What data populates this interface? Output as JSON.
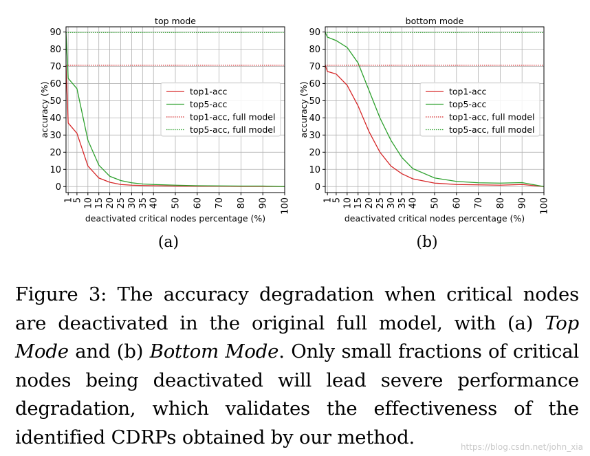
{
  "chart_data": [
    {
      "type": "line",
      "title": "top mode",
      "xlabel": "deactivated critical nodes percentage (%)",
      "ylabel": "accuracy (%)",
      "xlim": [
        0,
        100
      ],
      "ylim": [
        -3.5,
        93
      ],
      "grid": true,
      "legend": "center-right",
      "xticks": [
        1,
        5,
        10,
        15,
        20,
        25,
        30,
        35,
        40,
        50,
        60,
        70,
        80,
        90,
        100
      ],
      "yticks": [
        0,
        10,
        20,
        30,
        40,
        50,
        60,
        70,
        80,
        90
      ],
      "x": [
        0,
        1,
        5,
        10,
        15,
        20,
        25,
        30,
        35,
        40,
        50,
        60,
        70,
        80,
        90,
        100
      ],
      "series": [
        {
          "name": "top1-acc",
          "style": "solid",
          "color": "#d62728",
          "values": [
            70.6,
            37,
            31,
            12,
            5,
            2.5,
            1.2,
            0.8,
            0.6,
            0.5,
            0.3,
            0.2,
            0.2,
            0.1,
            0.1,
            0
          ]
        },
        {
          "name": "top5-acc",
          "style": "solid",
          "color": "#2ca02c",
          "values": [
            89.7,
            63,
            57,
            27,
            12.5,
            6,
            3.5,
            2.2,
            1.5,
            1.2,
            0.8,
            0.5,
            0.4,
            0.3,
            0.3,
            0
          ]
        },
        {
          "name": "top1-acc, full model",
          "style": "dotted",
          "color": "#d62728",
          "constant": 70.6
        },
        {
          "name": "top5-acc, full model",
          "style": "dotted",
          "color": "#2ca02c",
          "constant": 89.7
        }
      ]
    },
    {
      "type": "line",
      "title": "bottom mode",
      "xlabel": "deactivated critical nodes percentage (%)",
      "ylabel": "accuracy (%)",
      "xlim": [
        0,
        100
      ],
      "ylim": [
        -3.5,
        93
      ],
      "grid": true,
      "legend": "center-right",
      "xticks": [
        1,
        5,
        10,
        15,
        20,
        25,
        30,
        35,
        40,
        50,
        60,
        70,
        80,
        90,
        100
      ],
      "yticks": [
        0,
        10,
        20,
        30,
        40,
        50,
        60,
        70,
        80,
        90
      ],
      "x": [
        0,
        1,
        5,
        10,
        15,
        20,
        25,
        30,
        35,
        40,
        50,
        60,
        70,
        80,
        90,
        100
      ],
      "series": [
        {
          "name": "top1-acc",
          "style": "solid",
          "color": "#d62728",
          "values": [
            70.6,
            67,
            65.5,
            59,
            47,
            32,
            20,
            12,
            7.5,
            4.5,
            2,
            1.2,
            1,
            0.8,
            1.2,
            0
          ]
        },
        {
          "name": "top5-acc",
          "style": "solid",
          "color": "#2ca02c",
          "values": [
            89.7,
            87,
            85,
            81,
            72,
            56,
            40,
            27,
            17,
            10.5,
            5,
            3,
            2.2,
            2,
            2.3,
            0
          ]
        },
        {
          "name": "top1-acc, full model",
          "style": "dotted",
          "color": "#d62728",
          "constant": 70.6
        },
        {
          "name": "top5-acc, full model",
          "style": "dotted",
          "color": "#2ca02c",
          "constant": 89.7
        }
      ]
    }
  ],
  "sublabels": [
    "(a)",
    "(b)"
  ],
  "caption": {
    "p1": "Figure 3: The accuracy degradation when critical nodes are deactivated in the original full model, with (a) ",
    "mode_a": "Top Mode",
    "p2": " and (b) ",
    "mode_b": "Bottom Mode",
    "p3": ". Only small fractions of critical nodes being deactivated will lead severe performance degradation, which validates the effectiveness of the identified CDRPs obtained by our method."
  },
  "watermark": "https://blog.csdn.net/john_xia"
}
